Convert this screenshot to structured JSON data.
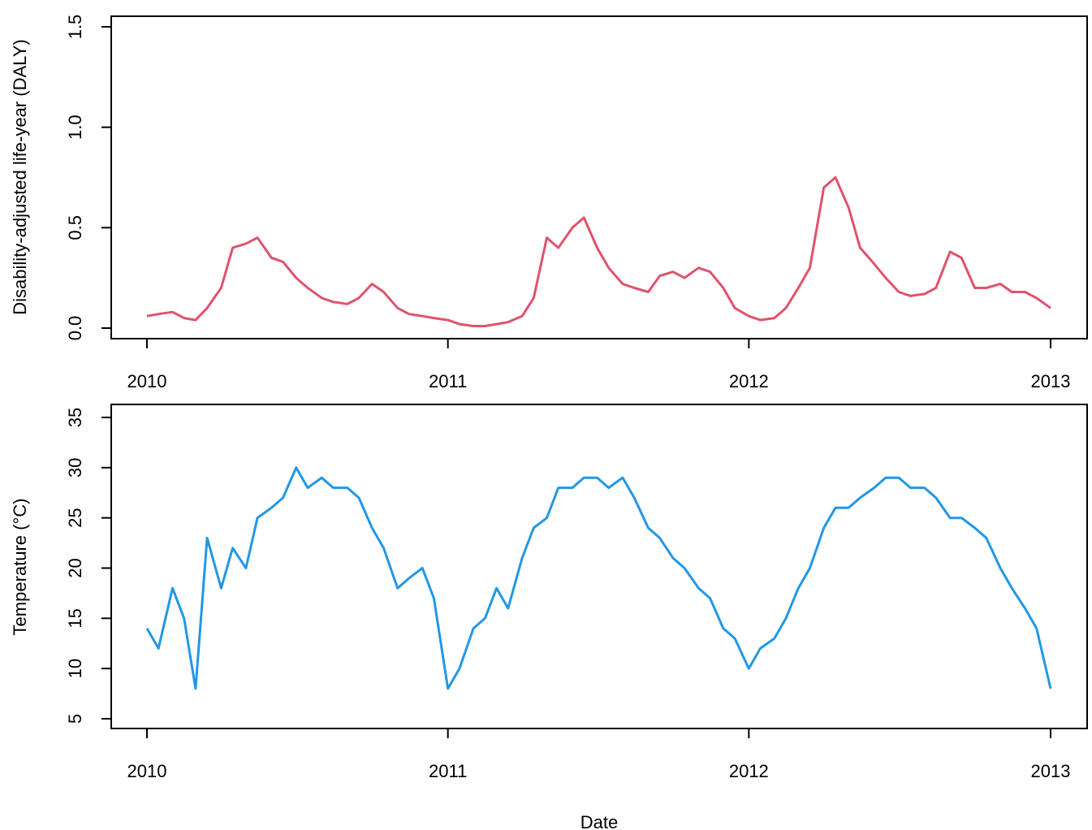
{
  "colors": {
    "daly": "#DF536B",
    "temperature": "#2297E6",
    "axis": "#000000",
    "background": "#FFFFFF"
  },
  "xlabel": "Date",
  "chart_data": [
    {
      "type": "line",
      "ylabel": "Disability-adjusted life-year (DALY)",
      "xlabel": "",
      "xlim": [
        "2010-01-01",
        "2013-01-01"
      ],
      "ylim": [
        0.0,
        1.5
      ],
      "x_ticks": [
        "2010",
        "2011",
        "2012",
        "2013"
      ],
      "y_ticks": [
        "0.0",
        "0.5",
        "1.0",
        "1.5"
      ],
      "grid": false,
      "series": [
        {
          "color": "#DF536B",
          "x": [
            "2010-01-01",
            "2010-01-15",
            "2010-02-01",
            "2010-02-15",
            "2010-03-01",
            "2010-03-15",
            "2010-04-01",
            "2010-04-15",
            "2010-05-01",
            "2010-05-15",
            "2010-06-01",
            "2010-06-15",
            "2010-07-01",
            "2010-07-15",
            "2010-08-01",
            "2010-08-15",
            "2010-09-01",
            "2010-09-15",
            "2010-10-01",
            "2010-10-15",
            "2010-11-01",
            "2010-11-15",
            "2010-12-01",
            "2010-12-15",
            "2011-01-01",
            "2011-01-15",
            "2011-02-01",
            "2011-02-15",
            "2011-03-01",
            "2011-03-15",
            "2011-04-01",
            "2011-04-15",
            "2011-05-01",
            "2011-05-15",
            "2011-06-01",
            "2011-06-15",
            "2011-07-01",
            "2011-07-15",
            "2011-08-01",
            "2011-08-15",
            "2011-09-01",
            "2011-09-15",
            "2011-10-01",
            "2011-10-15",
            "2011-11-01",
            "2011-11-15",
            "2011-12-01",
            "2011-12-15",
            "2012-01-01",
            "2012-01-15",
            "2012-02-01",
            "2012-02-15",
            "2012-03-01",
            "2012-03-15",
            "2012-04-01",
            "2012-04-15",
            "2012-05-01",
            "2012-05-15",
            "2012-06-01",
            "2012-06-15",
            "2012-07-01",
            "2012-07-15",
            "2012-08-01",
            "2012-08-15",
            "2012-09-01",
            "2012-09-15",
            "2012-10-01",
            "2012-10-15",
            "2012-11-01",
            "2012-11-15",
            "2012-12-01",
            "2012-12-15",
            "2013-01-01"
          ],
          "y": [
            0.06,
            0.07,
            0.08,
            0.05,
            0.04,
            0.1,
            0.2,
            0.4,
            0.42,
            0.45,
            0.35,
            0.33,
            0.25,
            0.2,
            0.15,
            0.13,
            0.12,
            0.15,
            0.22,
            0.18,
            0.1,
            0.07,
            0.06,
            0.05,
            0.04,
            0.02,
            0.01,
            0.01,
            0.02,
            0.03,
            0.06,
            0.15,
            0.45,
            0.4,
            0.5,
            0.55,
            0.4,
            0.3,
            0.22,
            0.2,
            0.18,
            0.26,
            0.28,
            0.25,
            0.3,
            0.28,
            0.2,
            0.1,
            0.06,
            0.04,
            0.05,
            0.1,
            0.2,
            0.3,
            0.7,
            0.75,
            0.6,
            0.4,
            0.32,
            0.25,
            0.18,
            0.16,
            0.17,
            0.2,
            0.38,
            0.35,
            0.2,
            0.2,
            0.22,
            0.18,
            0.18,
            0.15,
            0.1
          ]
        }
      ]
    },
    {
      "type": "line",
      "ylabel": "Temperature (°C)",
      "xlabel": "Date",
      "xlim": [
        "2010-01-01",
        "2013-01-01"
      ],
      "ylim": [
        5,
        35
      ],
      "x_ticks": [
        "2010",
        "2011",
        "2012",
        "2013"
      ],
      "y_ticks": [
        "5",
        "10",
        "15",
        "20",
        "25",
        "30",
        "35"
      ],
      "grid": false,
      "series": [
        {
          "color": "#2297E6",
          "x": [
            "2010-01-01",
            "2010-01-15",
            "2010-02-01",
            "2010-02-15",
            "2010-03-01",
            "2010-03-15",
            "2010-04-01",
            "2010-04-15",
            "2010-05-01",
            "2010-05-15",
            "2010-06-01",
            "2010-06-15",
            "2010-07-01",
            "2010-07-15",
            "2010-08-01",
            "2010-08-15",
            "2010-09-01",
            "2010-09-15",
            "2010-10-01",
            "2010-10-15",
            "2010-11-01",
            "2010-11-15",
            "2010-12-01",
            "2010-12-15",
            "2011-01-01",
            "2011-01-15",
            "2011-02-01",
            "2011-02-15",
            "2011-03-01",
            "2011-03-15",
            "2011-04-01",
            "2011-04-15",
            "2011-05-01",
            "2011-05-15",
            "2011-06-01",
            "2011-06-15",
            "2011-07-01",
            "2011-07-15",
            "2011-08-01",
            "2011-08-15",
            "2011-09-01",
            "2011-09-15",
            "2011-10-01",
            "2011-10-15",
            "2011-11-01",
            "2011-11-15",
            "2011-12-01",
            "2011-12-15",
            "2012-01-01",
            "2012-01-15",
            "2012-02-01",
            "2012-02-15",
            "2012-03-01",
            "2012-03-15",
            "2012-04-01",
            "2012-04-15",
            "2012-05-01",
            "2012-05-15",
            "2012-06-01",
            "2012-06-15",
            "2012-07-01",
            "2012-07-15",
            "2012-08-01",
            "2012-08-15",
            "2012-09-01",
            "2012-09-15",
            "2012-10-01",
            "2012-10-15",
            "2012-11-01",
            "2012-11-15",
            "2012-12-01",
            "2012-12-15",
            "2013-01-01"
          ],
          "y": [
            14,
            12,
            18,
            15,
            8,
            23,
            18,
            22,
            20,
            25,
            26,
            27,
            30,
            28,
            29,
            28,
            28,
            27,
            24,
            22,
            18,
            19,
            20,
            17,
            8,
            10,
            14,
            15,
            18,
            16,
            21,
            24,
            25,
            28,
            28,
            29,
            29,
            28,
            29,
            27,
            24,
            23,
            21,
            20,
            18,
            17,
            14,
            13,
            10,
            12,
            13,
            15,
            18,
            20,
            24,
            26,
            26,
            27,
            28,
            29,
            29,
            28,
            28,
            27,
            25,
            25,
            24,
            23,
            20,
            18,
            16,
            14,
            8
          ]
        }
      ]
    }
  ]
}
